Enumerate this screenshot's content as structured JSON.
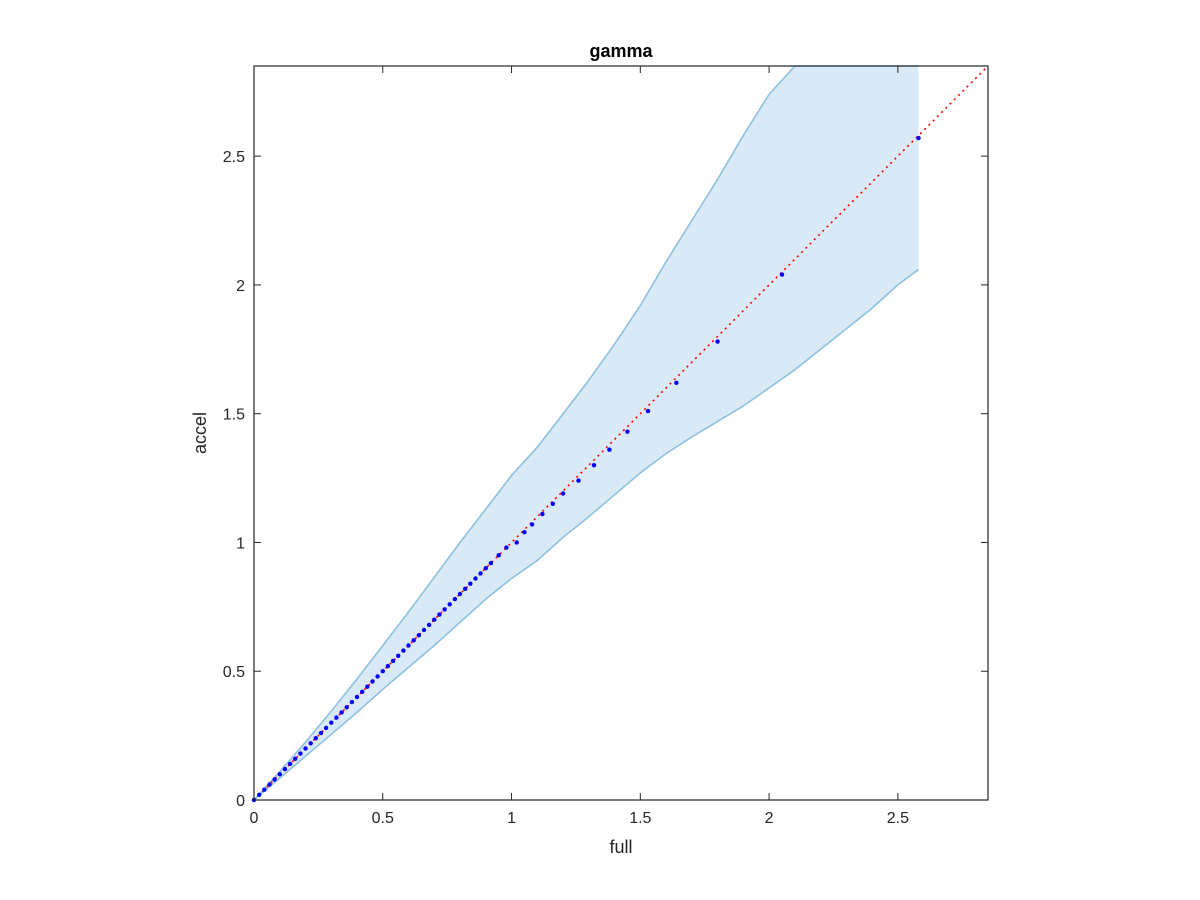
{
  "chart_data": {
    "type": "scatter",
    "title": "gamma",
    "xlabel": "full",
    "ylabel": "accel",
    "xlim": [
      0,
      2.85
    ],
    "ylim": [
      0,
      2.85
    ],
    "grid": false,
    "box": true,
    "x_ticks": [
      0,
      0.5,
      1,
      1.5,
      2,
      2.5
    ],
    "y_ticks": [
      0,
      0.5,
      1,
      1.5,
      2,
      2.5
    ],
    "x_tick_labels": [
      "0",
      "0.5",
      "1",
      "1.5",
      "2",
      "2.5"
    ],
    "y_tick_labels": [
      "0",
      "0.5",
      "1",
      "1.5",
      "2",
      "2.5"
    ],
    "points": {
      "color": "#0000ff",
      "x": [
        0.0,
        0.02,
        0.04,
        0.06,
        0.08,
        0.1,
        0.12,
        0.14,
        0.16,
        0.18,
        0.2,
        0.22,
        0.24,
        0.26,
        0.28,
        0.3,
        0.32,
        0.34,
        0.36,
        0.38,
        0.4,
        0.42,
        0.44,
        0.46,
        0.48,
        0.5,
        0.52,
        0.54,
        0.56,
        0.58,
        0.6,
        0.62,
        0.64,
        0.66,
        0.68,
        0.7,
        0.72,
        0.74,
        0.76,
        0.78,
        0.8,
        0.82,
        0.84,
        0.86,
        0.88,
        0.9,
        0.92,
        0.95,
        0.98,
        1.02,
        1.05,
        1.08,
        1.12,
        1.16,
        1.2,
        1.26,
        1.32,
        1.38,
        1.45,
        1.53,
        1.64,
        1.8,
        2.05,
        2.58
      ],
      "y": [
        0.0,
        0.02,
        0.04,
        0.06,
        0.08,
        0.1,
        0.12,
        0.14,
        0.16,
        0.18,
        0.2,
        0.22,
        0.24,
        0.26,
        0.28,
        0.3,
        0.32,
        0.34,
        0.36,
        0.38,
        0.4,
        0.42,
        0.44,
        0.46,
        0.48,
        0.5,
        0.52,
        0.54,
        0.56,
        0.58,
        0.6,
        0.62,
        0.64,
        0.66,
        0.68,
        0.7,
        0.72,
        0.74,
        0.76,
        0.78,
        0.8,
        0.82,
        0.84,
        0.86,
        0.88,
        0.9,
        0.92,
        0.95,
        0.98,
        1.0,
        1.04,
        1.07,
        1.11,
        1.15,
        1.19,
        1.24,
        1.3,
        1.36,
        1.43,
        1.51,
        1.62,
        1.78,
        2.04,
        2.57
      ]
    },
    "reference_line": {
      "color": "#ff0000",
      "style": "dotted",
      "from": [
        0,
        0
      ],
      "to": [
        2.85,
        2.85
      ]
    },
    "band": {
      "fill": "#d9e9f5",
      "stroke": "#8ec0e0",
      "x": [
        0,
        0.1,
        0.2,
        0.3,
        0.4,
        0.5,
        0.6,
        0.7,
        0.8,
        0.9,
        1.0,
        1.1,
        1.2,
        1.3,
        1.4,
        1.5,
        1.6,
        1.7,
        1.8,
        1.9,
        2.0,
        2.1,
        2.2,
        2.3,
        2.4,
        2.5,
        2.58
      ],
      "upper": [
        0,
        0.11,
        0.225,
        0.345,
        0.47,
        0.6,
        0.73,
        0.865,
        1.0,
        1.13,
        1.26,
        1.37,
        1.5,
        1.63,
        1.77,
        1.92,
        2.09,
        2.25,
        2.41,
        2.58,
        2.74,
        2.85,
        2.85,
        2.85,
        2.85,
        2.85,
        2.85
      ],
      "lower": [
        0,
        0.085,
        0.17,
        0.255,
        0.34,
        0.43,
        0.515,
        0.6,
        0.69,
        0.78,
        0.86,
        0.93,
        1.02,
        1.1,
        1.185,
        1.27,
        1.345,
        1.41,
        1.47,
        1.53,
        1.6,
        1.67,
        1.75,
        1.83,
        1.91,
        2.0,
        2.06
      ]
    }
  }
}
